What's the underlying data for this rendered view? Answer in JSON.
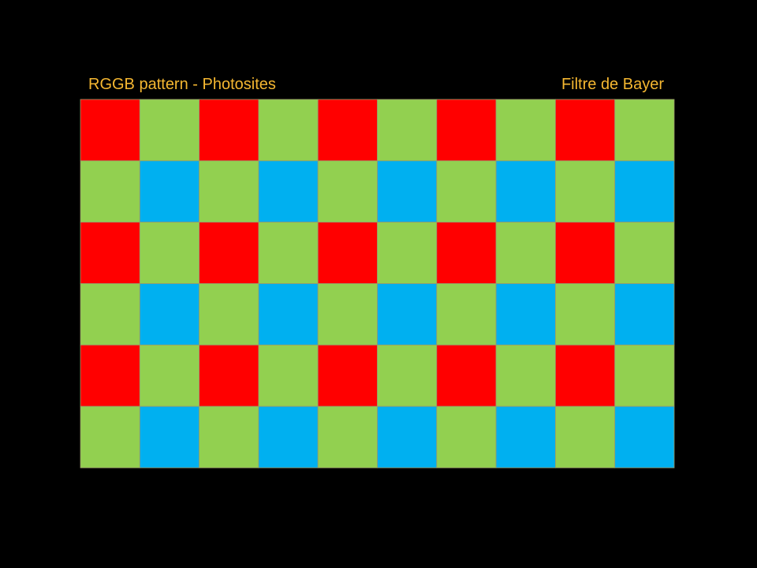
{
  "header": {
    "left_label": "RGGB pattern - Photosites",
    "right_label": "Filtre de Bayer"
  }
}
